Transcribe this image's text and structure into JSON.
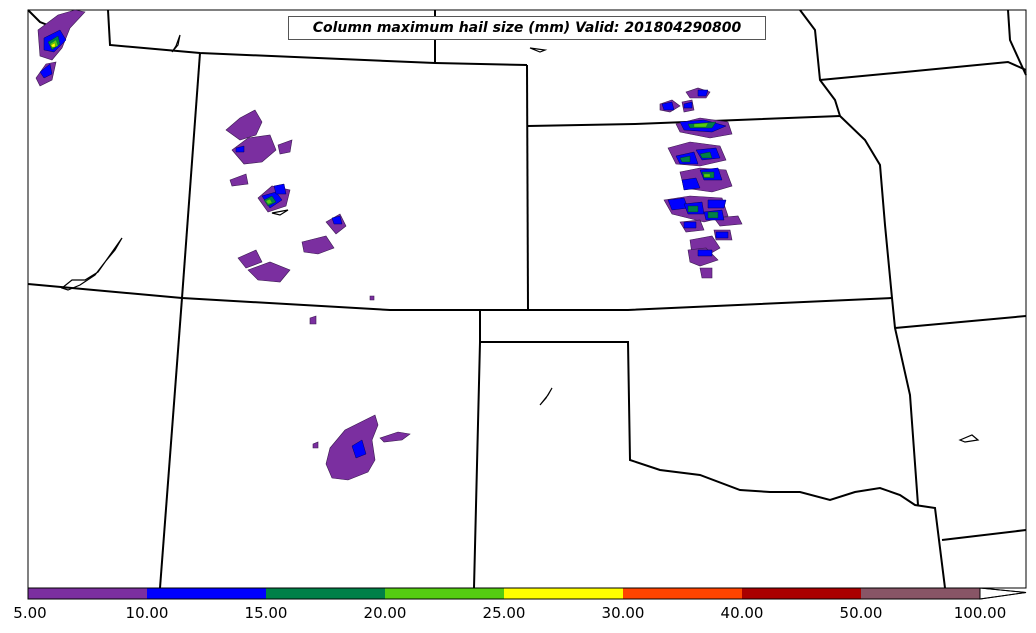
{
  "title": "Column maximum hail size (mm) Valid: 201804290800",
  "colorbar": {
    "bins": [
      {
        "from": "5.00",
        "to": "10.00",
        "color": "#7b2fa0"
      },
      {
        "from": "10.00",
        "to": "15.00",
        "color": "#0000ff"
      },
      {
        "from": "15.00",
        "to": "20.00",
        "color": "#008048"
      },
      {
        "from": "20.00",
        "to": "25.00",
        "color": "#55cc11"
      },
      {
        "from": "25.00",
        "to": "30.00",
        "color": "#ffff00"
      },
      {
        "from": "30.00",
        "to": "40.00",
        "color": "#ff4400"
      },
      {
        "from": "40.00",
        "to": "50.00",
        "color": "#aa0000"
      },
      {
        "from": "50.00",
        "to": "100.00",
        "color": "#885566"
      }
    ],
    "labels": [
      "5.00",
      "10.00",
      "15.00",
      "20.00",
      "25.00",
      "30.00",
      "40.00",
      "50.00",
      "100.00"
    ],
    "extend": "max"
  },
  "colors": {
    "hail_5_10": "#7b2fa0",
    "hail_10_15": "#0000ff",
    "hail_15_20": "#008048",
    "hail_20_25": "#55cc11",
    "hail_25_30": "#ffff00",
    "boundary": "#000000"
  }
}
